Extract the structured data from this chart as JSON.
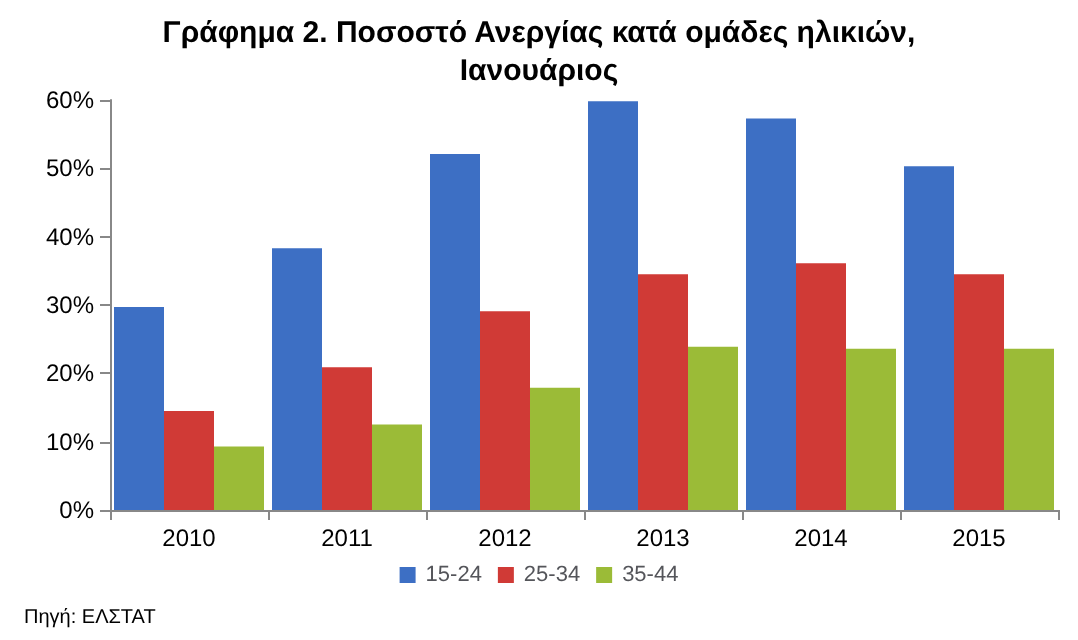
{
  "chart_data": {
    "type": "bar",
    "title": "Γράφημα 2. Ποσοστό Ανεργίας κατά ομάδες ηλικιών,\nΙανουάριος",
    "categories": [
      "2010",
      "2011",
      "2012",
      "2013",
      "2014",
      "2015"
    ],
    "series": [
      {
        "name": "15-24",
        "color": "#3d6fc4",
        "values": [
          29.7,
          38.3,
          52.1,
          59.8,
          57.3,
          50.3
        ]
      },
      {
        "name": "25-34",
        "color": "#d03a36",
        "values": [
          14.5,
          20.9,
          29.1,
          34.5,
          36.1,
          34.5
        ]
      },
      {
        "name": "35-44",
        "color": "#9bbb37",
        "values": [
          9.3,
          12.5,
          17.9,
          23.9,
          23.6,
          23.6
        ]
      }
    ],
    "ylim": [
      0,
      60
    ],
    "yticks": [
      {
        "value": 0,
        "label": "0%"
      },
      {
        "value": 10,
        "label": "10%"
      },
      {
        "value": 20,
        "label": "20%"
      },
      {
        "value": 30,
        "label": "30%"
      },
      {
        "value": 40,
        "label": "40%"
      },
      {
        "value": 50,
        "label": "50%"
      },
      {
        "value": 60,
        "label": "60%"
      }
    ],
    "grid": false,
    "legend": "bottom",
    "annotations": [
      "Πηγή: ΕΛΣΤΑΤ"
    ]
  }
}
